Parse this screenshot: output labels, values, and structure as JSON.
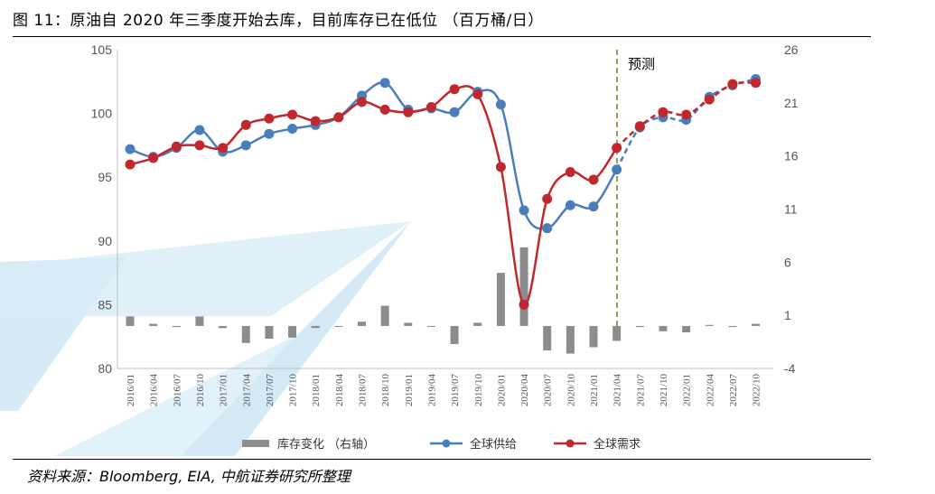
{
  "title": "图 11：原油自 2020 年三季度开始去库，目前库存已在低位 （百万桶/日）",
  "source": "资料来源：Bloomberg, EIA, 中航证券研究所整理",
  "colors": {
    "supply": "#4a7ebb",
    "demand": "#c0282d",
    "inventory": "#8c8c8c",
    "forecast_line": "#7a7a2a",
    "watermark": "#bfe0f2"
  },
  "chart_data": {
    "type": "line",
    "annotation": "预测",
    "forecast_start": "2021/04",
    "categories": [
      "2016/01",
      "2016/04",
      "2016/07",
      "2016/10",
      "2017/01",
      "2017/04",
      "2017/07",
      "2017/10",
      "2018/01",
      "2018/04",
      "2018/07",
      "2018/10",
      "2019/01",
      "2019/04",
      "2019/07",
      "2019/10",
      "2020/01",
      "2020/04",
      "2020/07",
      "2020/10",
      "2021/01",
      "2021/04",
      "2021/07",
      "2021/10",
      "2022/01",
      "2022/04",
      "2022/07",
      "2022/10"
    ],
    "left_axis": {
      "min": 80,
      "max": 105,
      "ticks": [
        80,
        85,
        90,
        95,
        100,
        105
      ]
    },
    "right_axis": {
      "min": -4,
      "max": 26,
      "ticks": [
        -4,
        1,
        6,
        11,
        16,
        21,
        26
      ]
    },
    "series": [
      {
        "name": "库存变化 （右轴）",
        "type": "bar",
        "axis": "right",
        "values": [
          0.9,
          0.2,
          -0.1,
          0.9,
          -0.2,
          -1.6,
          -1.2,
          -1.1,
          -0.2,
          0.0,
          0.4,
          1.9,
          0.3,
          0.0,
          -1.7,
          0.3,
          5.0,
          7.4,
          -2.3,
          -2.6,
          -2.0,
          -1.4,
          -0.1,
          -0.5,
          -0.6,
          0.1,
          -0.1,
          0.2
        ]
      },
      {
        "name": "全球供给",
        "type": "line",
        "axis": "left",
        "values": [
          97.2,
          96.6,
          97.3,
          98.7,
          97.0,
          97.5,
          98.4,
          98.8,
          99.1,
          99.7,
          101.4,
          102.4,
          100.3,
          100.4,
          100.1,
          101.7,
          100.7,
          92.4,
          91.0,
          92.8,
          92.7,
          95.6,
          98.9,
          99.7,
          99.5,
          101.3,
          102.2,
          102.7
        ]
      },
      {
        "name": "全球需求",
        "type": "line",
        "axis": "left",
        "values": [
          96.0,
          96.5,
          97.4,
          97.5,
          97.3,
          99.1,
          99.6,
          99.9,
          99.4,
          99.7,
          100.9,
          100.3,
          100.1,
          100.5,
          101.9,
          101.5,
          95.8,
          85.0,
          93.3,
          95.4,
          94.8,
          97.3,
          99.0,
          100.1,
          99.9,
          101.1,
          102.3,
          102.4
        ]
      }
    ]
  }
}
